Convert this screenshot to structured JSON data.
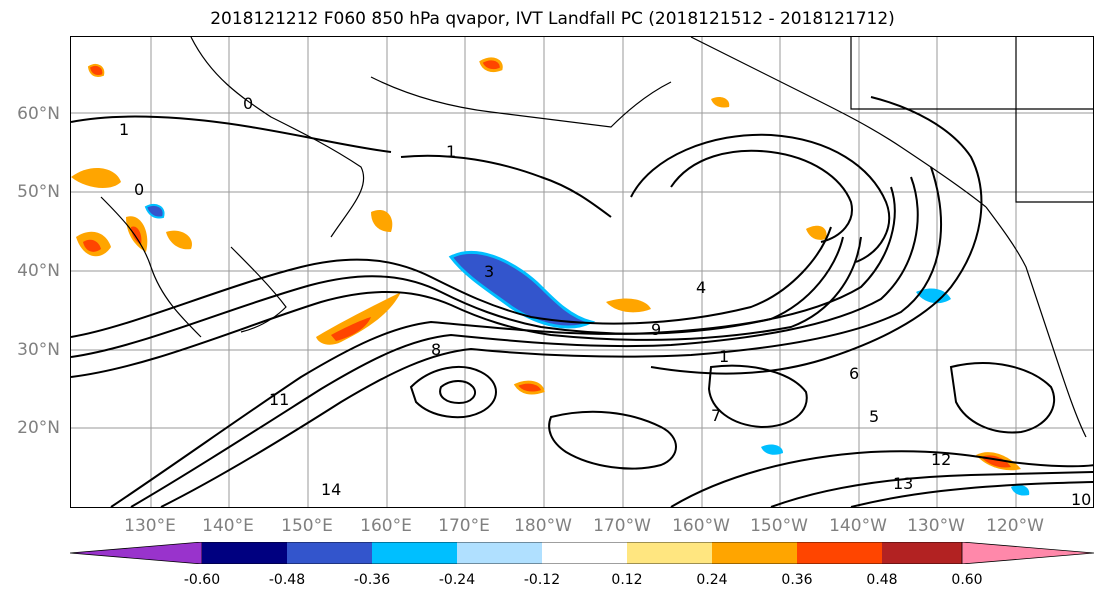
{
  "title": "2018121212 F060 850 hPa qvapor, IVT Landfall PC (2018121512 - 2018121712)",
  "lat_labels": [
    "60°N",
    "50°N",
    "40°N",
    "30°N",
    "20°N"
  ],
  "lon_labels": [
    "130°E",
    "140°E",
    "150°E",
    "160°E",
    "170°E",
    "180°W",
    "170°W",
    "160°W",
    "150°W",
    "140°W",
    "130°W",
    "120°W"
  ],
  "contour_labels": [
    "1",
    "1",
    "0",
    "0",
    "3",
    "4",
    "1",
    "9",
    "8",
    "11",
    "14",
    "13",
    "12",
    "6",
    "5",
    "10",
    "7"
  ],
  "colorbar": {
    "colors": [
      "#9933cc",
      "#000080",
      "#3355cc",
      "#00bfff",
      "#b0e0ff",
      "#ffffff",
      "#ffe680",
      "#ffa500",
      "#ff4500",
      "#b22222",
      "#ff88aa"
    ],
    "tick_labels": [
      "-0.60",
      "-0.48",
      "-0.36",
      "-0.24",
      "-0.12",
      "0.12",
      "0.24",
      "0.36",
      "0.48",
      "0.60"
    ]
  }
}
